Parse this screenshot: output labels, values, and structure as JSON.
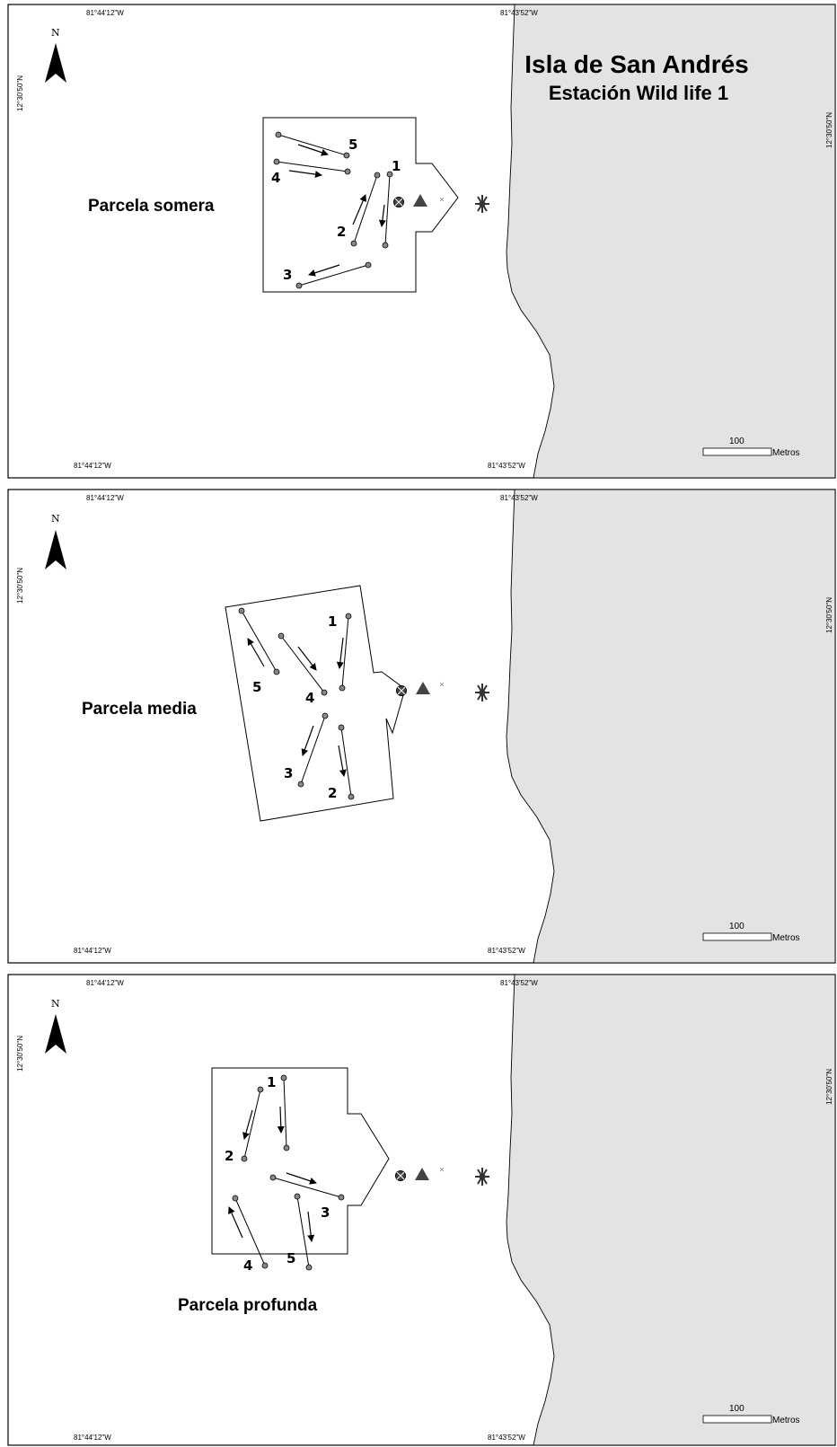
{
  "title": {
    "line1": "Isla de San Andrés",
    "line2": "Estación Wild life 1"
  },
  "coords": {
    "lon_west": "81°44'12\"W",
    "lon_east": "81°43'52\"W",
    "lat": "12°30'50\"N"
  },
  "north_label": "N",
  "scale": {
    "value": "100",
    "unit": "Metros"
  },
  "colors": {
    "land": "#e3e3e3",
    "point": "#888888",
    "symbol": "#444444"
  },
  "panels": [
    {
      "label": "Parcela somera",
      "transects": [
        "1",
        "2",
        "3",
        "4",
        "5"
      ]
    },
    {
      "label": "Parcela media",
      "transects": [
        "1",
        "2",
        "3",
        "4",
        "5"
      ]
    },
    {
      "label": "Parcela profunda",
      "transects": [
        "1",
        "2",
        "3",
        "4",
        "5"
      ]
    }
  ]
}
